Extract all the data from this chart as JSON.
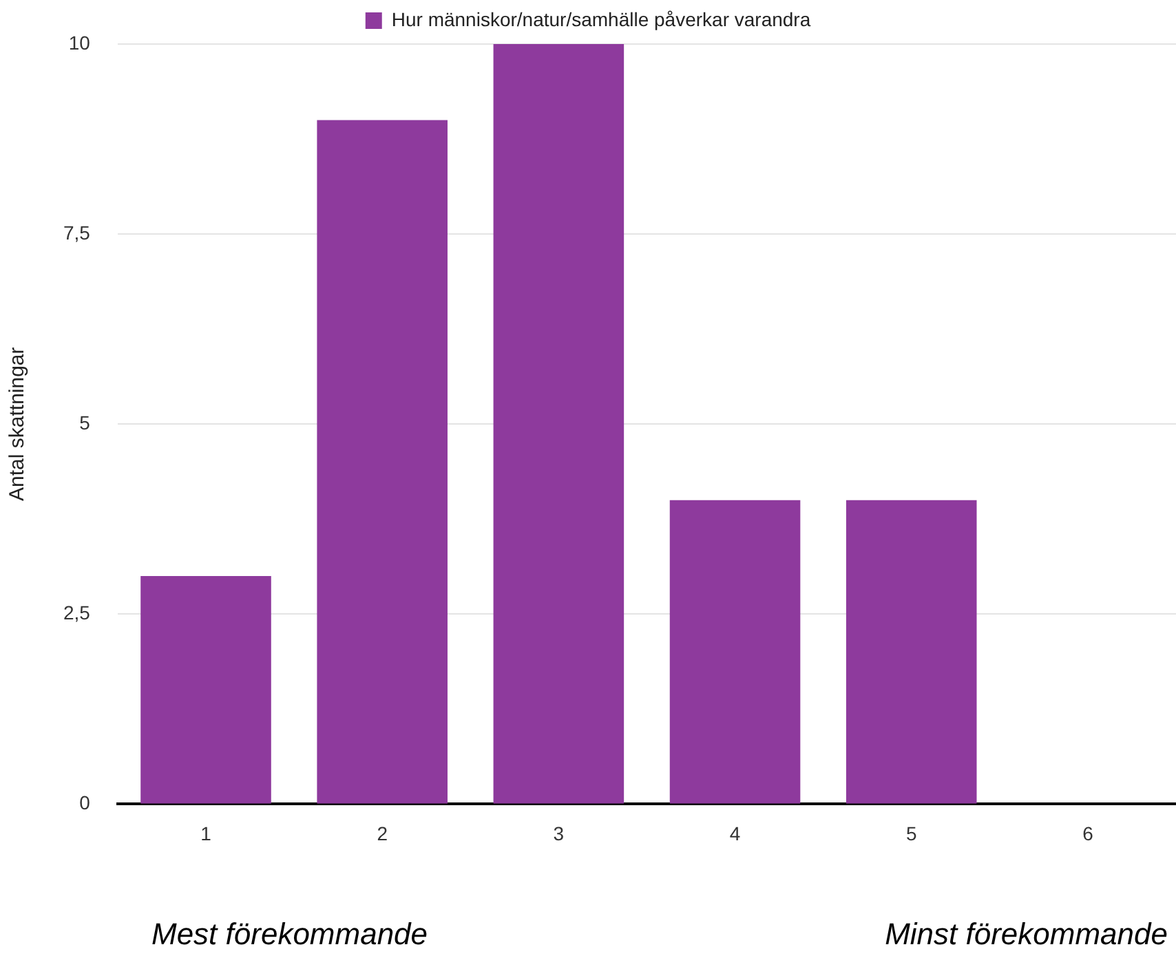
{
  "chart_data": {
    "type": "bar",
    "ylabel": "Antal skattningar",
    "categories": [
      "1",
      "2",
      "3",
      "4",
      "5",
      "6"
    ],
    "series": [
      {
        "name": "Hur människor/natur/samhälle påverkar varandra",
        "color": "#8e3a9d",
        "values": [
          3,
          9,
          10,
          4,
          4,
          0
        ]
      }
    ],
    "ylim": [
      0,
      10
    ],
    "yticks": [
      0,
      {
        "value": 2.5,
        "label": "2,5"
      },
      5,
      {
        "value": 7.5,
        "label": "7,5"
      },
      10
    ],
    "grid": "y",
    "legend": "top",
    "annotations": [
      "Mest förekommande",
      "Minst förekommande"
    ]
  }
}
